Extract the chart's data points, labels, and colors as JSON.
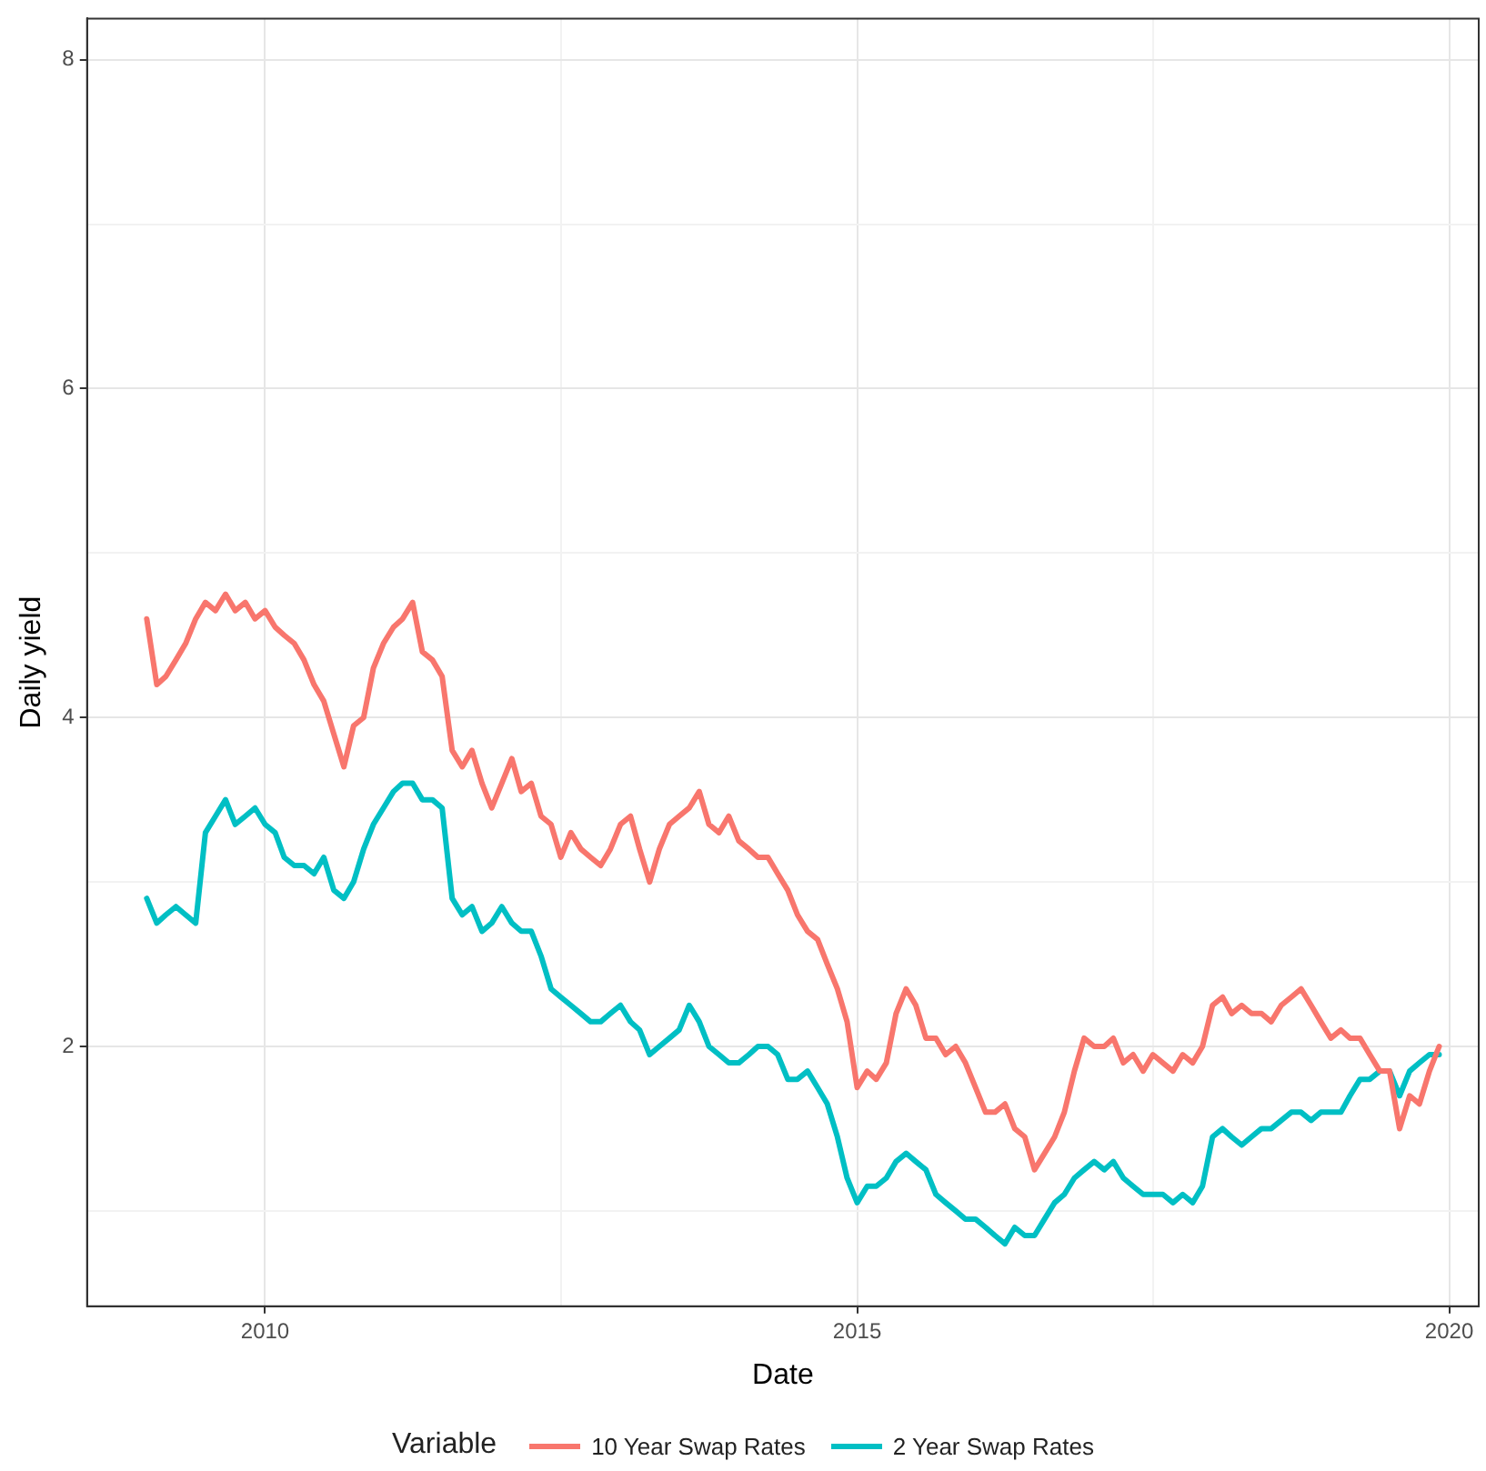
{
  "chart_data": {
    "type": "line",
    "xlabel": "Date",
    "ylabel": "Daily yield",
    "legend_title": "Variable",
    "legend": "bottom",
    "grid": true,
    "line_style": "solid",
    "marker": "none",
    "xlim": [
      "2008-07",
      "2020-04"
    ],
    "xticks": [
      {
        "value": "2010",
        "label": "2010"
      },
      {
        "value": "2012-07",
        "label": null
      },
      {
        "value": "2015",
        "label": "2015"
      },
      {
        "value": "2017-07",
        "label": null
      },
      {
        "value": "2020",
        "label": "2020"
      }
    ],
    "ylim": [
      0.42,
      8.25
    ],
    "yticks": [
      {
        "value": 1,
        "label": null
      },
      2,
      {
        "value": 3,
        "label": null
      },
      4,
      {
        "value": 5,
        "label": null
      },
      6,
      {
        "value": 7,
        "label": null
      },
      8
    ],
    "x": [
      "2009-01",
      "2009-02",
      "2009-03",
      "2009-04",
      "2009-05",
      "2009-06",
      "2009-07",
      "2009-08",
      "2009-09",
      "2009-10",
      "2009-11",
      "2009-12",
      "2010-01",
      "2010-02",
      "2010-03",
      "2010-04",
      "2010-05",
      "2010-06",
      "2010-07",
      "2010-08",
      "2010-09",
      "2010-10",
      "2010-11",
      "2010-12",
      "2011-01",
      "2011-02",
      "2011-03",
      "2011-04",
      "2011-05",
      "2011-06",
      "2011-07",
      "2011-08",
      "2011-09",
      "2011-10",
      "2011-11",
      "2011-12",
      "2012-01",
      "2012-02",
      "2012-03",
      "2012-04",
      "2012-05",
      "2012-06",
      "2012-07",
      "2012-08",
      "2012-09",
      "2012-10",
      "2012-11",
      "2012-12",
      "2013-01",
      "2013-02",
      "2013-03",
      "2013-04",
      "2013-05",
      "2013-06",
      "2013-07",
      "2013-08",
      "2013-09",
      "2013-10",
      "2013-11",
      "2013-12",
      "2014-01",
      "2014-02",
      "2014-03",
      "2014-04",
      "2014-05",
      "2014-06",
      "2014-07",
      "2014-08",
      "2014-09",
      "2014-10",
      "2014-11",
      "2014-12",
      "2015-01",
      "2015-02",
      "2015-03",
      "2015-04",
      "2015-05",
      "2015-06",
      "2015-07",
      "2015-08",
      "2015-09",
      "2015-10",
      "2015-11",
      "2015-12",
      "2016-01",
      "2016-02",
      "2016-03",
      "2016-04",
      "2016-05",
      "2016-06",
      "2016-07",
      "2016-08",
      "2016-09",
      "2016-10",
      "2016-11",
      "2016-12",
      "2017-01",
      "2017-02",
      "2017-03",
      "2017-04",
      "2017-05",
      "2017-06",
      "2017-07",
      "2017-08",
      "2017-09",
      "2017-10",
      "2017-11",
      "2017-12",
      "2018-01",
      "2018-02",
      "2018-03",
      "2018-04",
      "2018-05",
      "2018-06",
      "2018-07",
      "2018-08",
      "2018-09",
      "2018-10",
      "2018-11",
      "2018-12",
      "2019-01",
      "2019-02",
      "2019-03",
      "2019-04",
      "2019-05",
      "2019-06",
      "2019-07",
      "2019-08",
      "2019-09",
      "2019-10",
      "2019-11",
      "2019-12"
    ],
    "series": [
      {
        "name": "10 Year Swap Rates",
        "color": "#f8766d",
        "values": [
          4.6,
          4.2,
          4.25,
          4.35,
          4.45,
          4.6,
          4.7,
          4.65,
          4.75,
          4.65,
          4.7,
          4.6,
          4.65,
          4.55,
          4.5,
          4.45,
          4.35,
          4.2,
          4.1,
          3.9,
          3.7,
          3.95,
          4.0,
          4.3,
          4.45,
          4.55,
          4.6,
          4.7,
          4.4,
          4.35,
          4.25,
          3.8,
          3.7,
          3.8,
          3.6,
          3.45,
          3.6,
          3.75,
          3.55,
          3.6,
          3.4,
          3.35,
          3.15,
          3.3,
          3.2,
          3.15,
          3.1,
          3.2,
          3.35,
          3.4,
          3.2,
          3.0,
          3.2,
          3.35,
          3.4,
          3.45,
          3.55,
          3.35,
          3.3,
          3.4,
          3.25,
          3.2,
          3.15,
          3.15,
          3.05,
          2.95,
          2.8,
          2.7,
          2.65,
          2.5,
          2.35,
          2.15,
          1.75,
          1.85,
          1.8,
          1.9,
          2.2,
          2.35,
          2.25,
          2.05,
          2.05,
          1.95,
          2.0,
          1.9,
          1.75,
          1.6,
          1.6,
          1.65,
          1.5,
          1.45,
          1.25,
          1.35,
          1.45,
          1.6,
          1.85,
          2.05,
          2.0,
          2.0,
          2.05,
          1.9,
          1.95,
          1.85,
          1.95,
          1.9,
          1.85,
          1.95,
          1.9,
          2.0,
          2.25,
          2.3,
          2.2,
          2.25,
          2.2,
          2.2,
          2.15,
          2.25,
          2.3,
          2.35,
          2.25,
          2.15,
          2.05,
          2.1,
          2.05,
          2.05,
          1.95,
          1.85,
          1.85,
          1.5,
          1.7,
          1.65,
          1.85,
          2.0
        ]
      },
      {
        "name": "2 Year Swap Rates",
        "color": "#00bfc4",
        "values": [
          2.9,
          2.75,
          2.8,
          2.85,
          2.8,
          2.75,
          3.3,
          3.4,
          3.5,
          3.35,
          3.4,
          3.45,
          3.35,
          3.3,
          3.15,
          3.1,
          3.1,
          3.05,
          3.15,
          2.95,
          2.9,
          3.0,
          3.2,
          3.35,
          3.45,
          3.55,
          3.6,
          3.6,
          3.5,
          3.5,
          3.45,
          2.9,
          2.8,
          2.85,
          2.7,
          2.75,
          2.85,
          2.75,
          2.7,
          2.7,
          2.55,
          2.35,
          2.3,
          2.25,
          2.2,
          2.15,
          2.15,
          2.2,
          2.25,
          2.15,
          2.1,
          1.95,
          2.0,
          2.05,
          2.1,
          2.25,
          2.15,
          2.0,
          1.95,
          1.9,
          1.9,
          1.95,
          2.0,
          2.0,
          1.95,
          1.8,
          1.8,
          1.85,
          1.75,
          1.65,
          1.45,
          1.2,
          1.05,
          1.15,
          1.15,
          1.2,
          1.3,
          1.35,
          1.3,
          1.25,
          1.1,
          1.05,
          1.0,
          0.95,
          0.95,
          0.9,
          0.85,
          0.8,
          0.9,
          0.85,
          0.85,
          0.95,
          1.05,
          1.1,
          1.2,
          1.25,
          1.3,
          1.25,
          1.3,
          1.2,
          1.15,
          1.1,
          1.1,
          1.1,
          1.05,
          1.1,
          1.05,
          1.15,
          1.45,
          1.5,
          1.45,
          1.4,
          1.45,
          1.5,
          1.5,
          1.55,
          1.6,
          1.6,
          1.55,
          1.6,
          1.6,
          1.6,
          1.7,
          1.8,
          1.8,
          1.85,
          1.85,
          1.7,
          1.85,
          1.9,
          1.95,
          1.95
        ]
      }
    ]
  }
}
